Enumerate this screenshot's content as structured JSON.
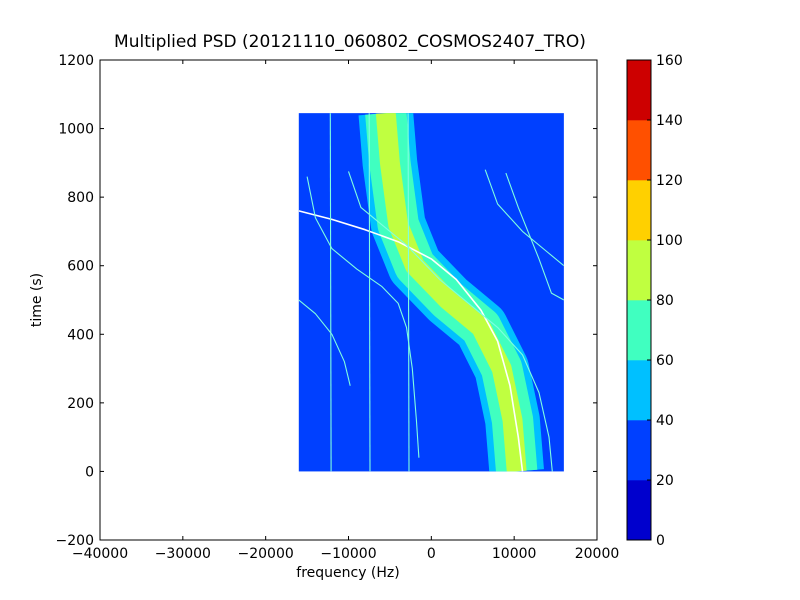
{
  "chart_data": {
    "type": "heatmap",
    "title": "Multiplied PSD (20121110_060802_COSMOS2407_TRO)",
    "xlabel": "frequency (Hz)",
    "ylabel": "time (s)",
    "xlim": [
      -40000,
      20000
    ],
    "ylim": [
      -200,
      1200
    ],
    "xticks": [
      "−40000",
      "−30000",
      "−20000",
      "−10000",
      "0",
      "10000",
      "20000"
    ],
    "xtick_values": [
      -40000,
      -30000,
      -20000,
      -10000,
      0,
      10000,
      20000
    ],
    "yticks": [
      "−200",
      "0",
      "200",
      "400",
      "600",
      "800",
      "1000",
      "1200"
    ],
    "ytick_values": [
      -200,
      0,
      200,
      400,
      600,
      800,
      1000,
      1200
    ],
    "grid": false,
    "data_extent": {
      "freq": [
        -16000,
        16000
      ],
      "time": [
        0,
        1045
      ]
    },
    "background_level": 30,
    "colorbar": {
      "levels": [
        0,
        20,
        40,
        60,
        80,
        100,
        120,
        140,
        160
      ],
      "labels": [
        "0",
        "20",
        "40",
        "60",
        "80",
        "100",
        "120",
        "140",
        "160"
      ],
      "colors": [
        "#0000cd",
        "#0040ff",
        "#00c0ff",
        "#40ffc0",
        "#c0ff40",
        "#ffd000",
        "#ff5000",
        "#cd0000"
      ]
    },
    "band": {
      "description_levels": [
        "#00c0ff",
        "#40ffc0",
        "#c0ff40"
      ],
      "center_points": [
        [
          -5500,
          1045
        ],
        [
          -5000,
          900
        ],
        [
          -4000,
          720
        ],
        [
          -2000,
          600
        ],
        [
          2000,
          500
        ],
        [
          6000,
          420
        ],
        [
          8500,
          300
        ],
        [
          9800,
          150
        ],
        [
          10300,
          0
        ]
      ],
      "half_widths": [
        3300,
        2500,
        1200
      ]
    },
    "traces": [
      {
        "color": "#ffffff",
        "points": [
          [
            -16000,
            760
          ],
          [
            -12000,
            735
          ],
          [
            -8000,
            705
          ],
          [
            -4000,
            670
          ],
          [
            0,
            620
          ],
          [
            3000,
            560
          ],
          [
            6000,
            470
          ],
          [
            8000,
            380
          ],
          [
            9500,
            250
          ],
          [
            10500,
            100
          ],
          [
            11000,
            0
          ]
        ]
      },
      {
        "color": "#7fffe0",
        "points": [
          [
            -15000,
            860
          ],
          [
            -14000,
            740
          ],
          [
            -12000,
            650
          ],
          [
            -9000,
            590
          ],
          [
            -6000,
            540
          ],
          [
            -4000,
            490
          ],
          [
            -3000,
            420
          ],
          [
            -2300,
            300
          ],
          [
            -1800,
            150
          ],
          [
            -1500,
            40
          ]
        ]
      },
      {
        "color": "#7fffe0",
        "points": [
          [
            -10000,
            875
          ],
          [
            -8500,
            770
          ],
          [
            -6000,
            720
          ],
          [
            -3000,
            660
          ],
          [
            1000,
            560
          ],
          [
            5000,
            480
          ],
          [
            8000,
            420
          ],
          [
            11000,
            340
          ],
          [
            13000,
            230
          ],
          [
            14200,
            100
          ],
          [
            14600,
            0
          ]
        ]
      },
      {
        "color": "#7fffe0",
        "points": [
          [
            -16000,
            500
          ],
          [
            -14000,
            460
          ],
          [
            -12000,
            400
          ],
          [
            -10500,
            320
          ],
          [
            -9800,
            250
          ]
        ]
      },
      {
        "color": "#7fffe0",
        "points": [
          [
            6500,
            880
          ],
          [
            8000,
            780
          ],
          [
            11000,
            700
          ],
          [
            14000,
            640
          ],
          [
            16000,
            600
          ]
        ]
      },
      {
        "color": "#7fffe0",
        "points": [
          [
            9000,
            870
          ],
          [
            10500,
            770
          ],
          [
            13000,
            620
          ],
          [
            14500,
            520
          ],
          [
            16000,
            500
          ]
        ]
      },
      {
        "color": "#7fffe0",
        "points": [
          [
            -12200,
            1045
          ],
          [
            -12100,
            0
          ]
        ]
      },
      {
        "color": "#7fffe0",
        "points": [
          [
            -2800,
            1045
          ],
          [
            -2700,
            0
          ]
        ]
      },
      {
        "color": "#7fffe0",
        "points": [
          [
            -7500,
            1045
          ],
          [
            -7400,
            0
          ]
        ]
      }
    ]
  }
}
